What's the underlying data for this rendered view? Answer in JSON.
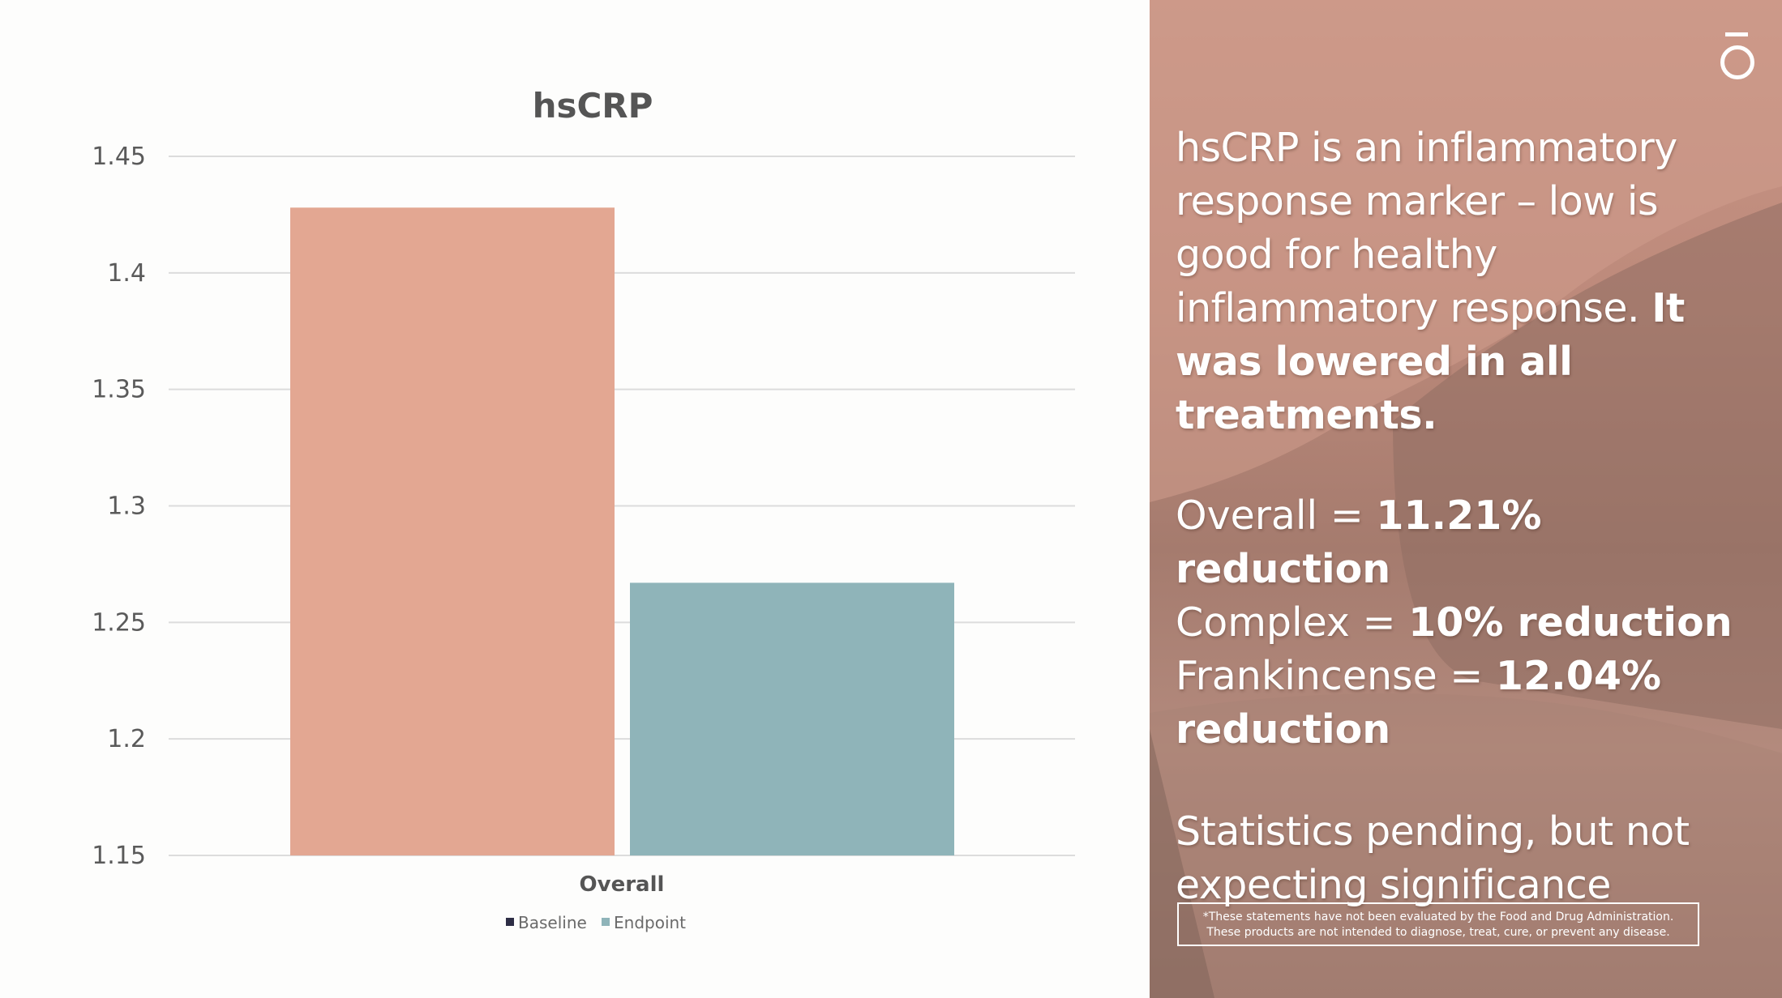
{
  "chart_data": {
    "type": "bar",
    "title": "hsCRP",
    "categories": [
      "Overall"
    ],
    "series": [
      {
        "name": "Baseline",
        "values": [
          1.428
        ],
        "color": "#e3a792",
        "legend_swatch": "#2d2d45"
      },
      {
        "name": "Endpoint",
        "values": [
          1.267
        ],
        "color": "#8fb4b9",
        "legend_swatch": "#8fb4b9"
      }
    ],
    "yticks": [
      "1.45",
      "1.4",
      "1.35",
      "1.3",
      "1.25",
      "1.2",
      "1.15"
    ],
    "ylim": [
      1.15,
      1.45
    ],
    "grid": true,
    "legend_position": "bottom"
  },
  "side_panel": {
    "intro_text": "hsCRP is an inflammatory response marker – low is good for healthy inflammatory response.",
    "intro_bold": "It was lowered in all treatments.",
    "stats": [
      {
        "label": "Overall = ",
        "value": "11.21% reduction"
      },
      {
        "label": "Complex = ",
        "value": "10% reduction"
      },
      {
        "label": "Frankincense = ",
        "value": "12.04% reduction"
      }
    ],
    "pending_text": "Statistics pending, but not expecting significance",
    "disclaimer_line1": "*These statements have not been evaluated by the Food and Drug Administration.",
    "disclaimer_line2": "These products are not intended to diagnose, treat, cure, or prevent any disease.",
    "brand_icon": "brand-o-logo-icon",
    "background_colors": [
      "#c99586",
      "#a57b6e"
    ]
  }
}
